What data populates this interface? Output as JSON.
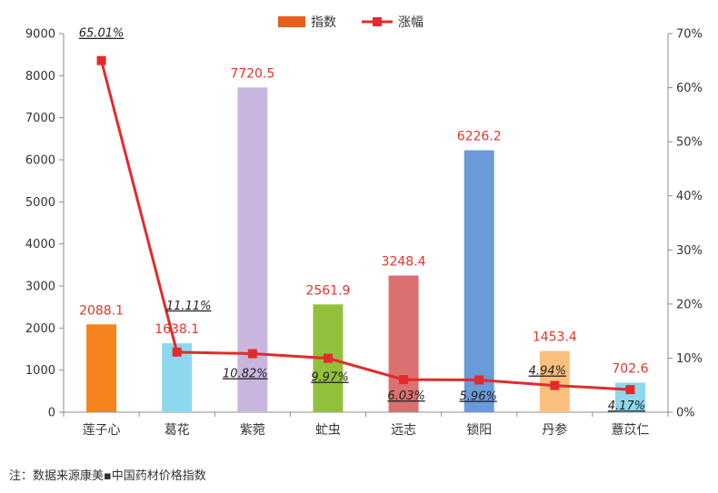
{
  "chart_data": {
    "type": "bar+line",
    "categories": [
      "莲子心",
      "葛花",
      "紫菀",
      "虻虫",
      "远志",
      "锁阳",
      "丹参",
      "薏苡仁"
    ],
    "series": [
      {
        "name": "指数",
        "type": "bar",
        "axis": "left",
        "values": [
          2088.1,
          1638.1,
          7720.5,
          2561.9,
          3248.4,
          6226.2,
          1453.4,
          702.6
        ],
        "labels": [
          "2088.1",
          "1638.1",
          "7720.5",
          "2561.9",
          "3248.4",
          "6226.2",
          "1453.4",
          "702.6"
        ],
        "colors": [
          "#F5841F",
          "#8ED8EF",
          "#C9B6DE",
          "#93C03A",
          "#DB7070",
          "#6A9AD8",
          "#F9C07E",
          "#8ED8EF"
        ]
      },
      {
        "name": "涨幅",
        "type": "line",
        "axis": "right",
        "values": [
          65.01,
          11.11,
          10.82,
          9.97,
          6.03,
          5.96,
          4.94,
          4.17
        ],
        "labels": [
          "65.01%",
          "11.11%",
          "10.82%",
          "9.97%",
          "6.03%",
          "5.96%",
          "4.94%",
          "4.17%"
        ],
        "color": "#E32B2B"
      }
    ],
    "y_left": {
      "min": 0,
      "max": 9000,
      "ticks": [
        "0",
        "1000",
        "2000",
        "3000",
        "4000",
        "5000",
        "6000",
        "7000",
        "8000",
        "9000"
      ]
    },
    "y_right": {
      "min": 0,
      "max": 70,
      "ticks": [
        "0%",
        "10%",
        "20%",
        "30%",
        "40%",
        "50%",
        "60%",
        "70%"
      ]
    },
    "legend": {
      "position": "top-center",
      "items": [
        "指数",
        "涨幅"
      ],
      "bar_color": "#E4601C",
      "line_color": "#E32B2B"
    },
    "grid": false,
    "bar_label_color": "#E0362C",
    "line_label_color": "#222222"
  },
  "footnote": "注：数据来源康美▪中国药材价格指数"
}
